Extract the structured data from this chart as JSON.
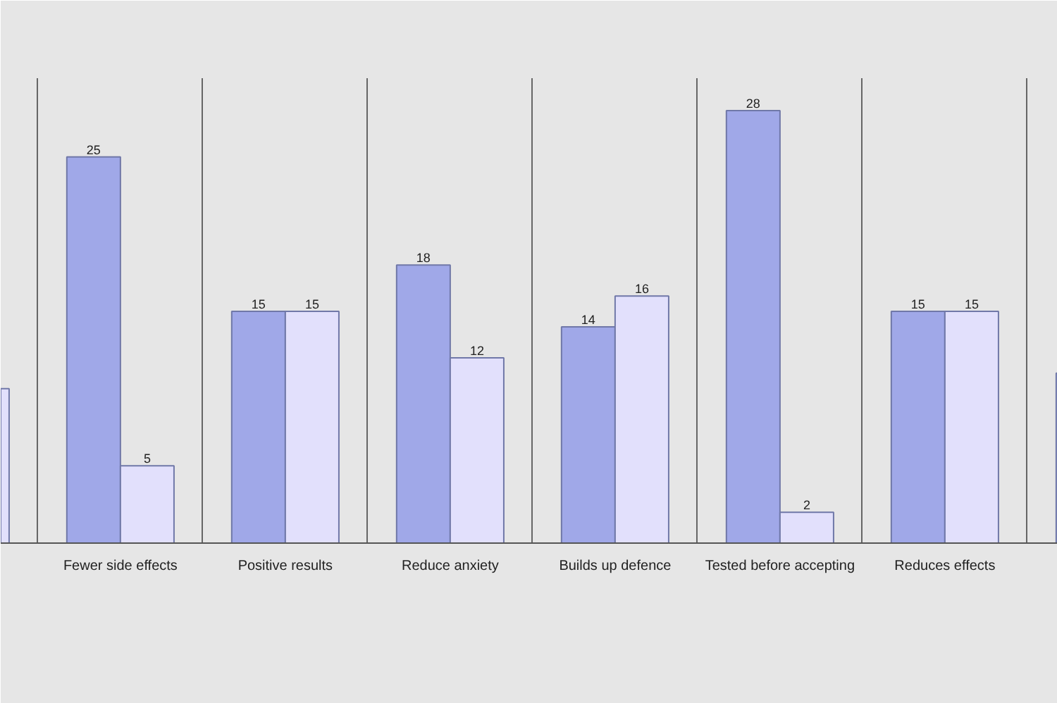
{
  "chart_data": {
    "type": "bar",
    "categories": [
      null,
      "Fewer side effects",
      "Positive results",
      "Reduce anxiety",
      "Builds up defence",
      "Tested before accepting",
      "Reduces effects",
      null
    ],
    "series": [
      {
        "color": "#a0a8e8",
        "values": [
          null,
          25,
          15,
          18,
          14,
          28,
          15,
          11
        ],
        "value_labels": [
          null,
          "25",
          "15",
          "18",
          "14",
          "28",
          "15",
          null
        ]
      },
      {
        "color": "#e2e0fc",
        "values": [
          10,
          5,
          15,
          12,
          16,
          2,
          15,
          null
        ],
        "value_labels": [
          null,
          "5",
          "15",
          "12",
          "16",
          "2",
          "15",
          null
        ]
      }
    ],
    "grid": "x"
  }
}
